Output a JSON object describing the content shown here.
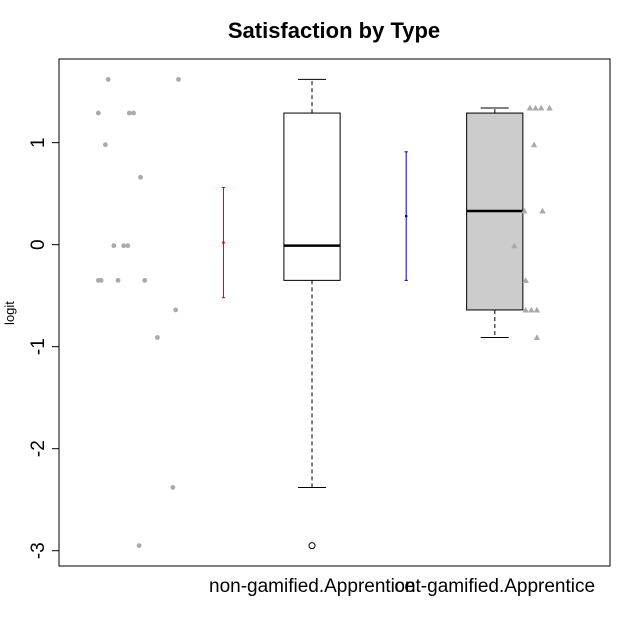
{
  "chart_data": {
    "type": "boxplot",
    "title": "Satisfaction by Type",
    "xlabel": "",
    "ylabel": "logit",
    "ylim": [
      -3.15,
      1.82
    ],
    "yticks": [
      -3,
      -2,
      -1,
      0,
      1
    ],
    "ytick_labels": [
      "-3",
      "-2",
      "-1",
      "0",
      "1"
    ],
    "categories": [
      "non-gamified.Apprentice",
      "ont-gamified.Apprentice"
    ],
    "grid": false,
    "colors": {
      "box_fill": [
        "#ffffff",
        "#cccccc"
      ],
      "box_stroke": "#000000",
      "points": "#aaaaaa",
      "error_bars": [
        "#dd0000",
        "#0000aa"
      ],
      "whisker": "#555555"
    },
    "groups": [
      {
        "category": "non-gamified.Apprentice",
        "box": {
          "lower_whisker": -2.38,
          "q1": -0.35,
          "median": -0.01,
          "q3": 1.29,
          "upper_whisker": 1.62
        },
        "outliers": [
          -2.95
        ],
        "mean_sd": {
          "mean": 0.02,
          "lower": -0.52,
          "upper": 0.56
        },
        "point_shape": "circle",
        "points": [
          {
            "x": -0.45,
            "y": 1.62
          },
          {
            "x": 0.05,
            "y": 1.62
          },
          {
            "x": -0.52,
            "y": 1.29
          },
          {
            "x": -0.3,
            "y": 1.29
          },
          {
            "x": -0.27,
            "y": 1.29
          },
          {
            "x": -0.47,
            "y": 0.98
          },
          {
            "x": -0.22,
            "y": 0.66
          },
          {
            "x": -0.41,
            "y": -0.01
          },
          {
            "x": -0.34,
            "y": -0.01
          },
          {
            "x": -0.31,
            "y": -0.01
          },
          {
            "x": -0.52,
            "y": -0.35
          },
          {
            "x": -0.5,
            "y": -0.35
          },
          {
            "x": -0.38,
            "y": -0.35
          },
          {
            "x": -0.19,
            "y": -0.35
          },
          {
            "x": 0.03,
            "y": -0.64
          },
          {
            "x": -0.1,
            "y": -0.91
          },
          {
            "x": 0.01,
            "y": -2.38
          },
          {
            "x": -0.23,
            "y": -2.95
          }
        ]
      },
      {
        "category": "ont-gamified.Apprentice",
        "box": {
          "lower_whisker": -0.91,
          "q1": -0.64,
          "median": 0.33,
          "q3": 1.29,
          "upper_whisker": 1.34
        },
        "outliers": [],
        "mean_sd": {
          "mean": 0.28,
          "lower": -0.35,
          "upper": 0.91
        },
        "point_shape": "triangle",
        "points": [
          {
            "x": 2.55,
            "y": 1.34
          },
          {
            "x": 2.59,
            "y": 1.34
          },
          {
            "x": 2.63,
            "y": 1.34
          },
          {
            "x": 2.69,
            "y": 1.34
          },
          {
            "x": 2.58,
            "y": 0.98
          },
          {
            "x": 2.51,
            "y": 0.33
          },
          {
            "x": 2.64,
            "y": 0.33
          },
          {
            "x": 2.44,
            "y": -0.01
          },
          {
            "x": 2.52,
            "y": -0.35
          },
          {
            "x": 2.52,
            "y": -0.64
          },
          {
            "x": 2.56,
            "y": -0.64
          },
          {
            "x": 2.6,
            "y": -0.64
          },
          {
            "x": 2.6,
            "y": -0.91
          }
        ]
      }
    ]
  }
}
